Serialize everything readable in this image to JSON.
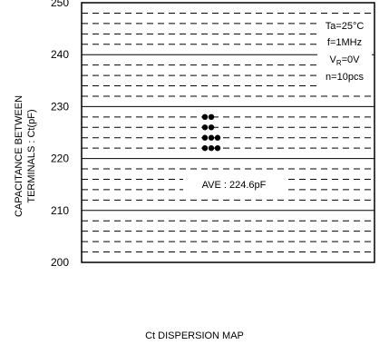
{
  "chart_data": {
    "type": "scatter",
    "title": "Ct DISPERSION MAP",
    "ylabel_line1": "CAPACITANCE BETWEEN",
    "ylabel_line2": "TERMINALS : Ct(pF)",
    "xlabel": "",
    "ylim": [
      200,
      250
    ],
    "y_major_ticks": [
      200,
      210,
      220,
      230,
      240,
      250
    ],
    "y_minor_step": 2,
    "grid": true,
    "conditions": [
      "Ta=25°C",
      "f=1MHz",
      "VR=0V",
      "n=10pcs"
    ],
    "condition_vr": {
      "main": "V",
      "sub": "R",
      "rest": "=0V"
    },
    "annotation": "AVE : 224.6pF",
    "points": [
      {
        "column": 1,
        "y": 222
      },
      {
        "column": 1,
        "y": 224
      },
      {
        "column": 1,
        "y": 226
      },
      {
        "column": 1,
        "y": 228
      },
      {
        "column": 2,
        "y": 222
      },
      {
        "column": 2,
        "y": 224
      },
      {
        "column": 2,
        "y": 226
      },
      {
        "column": 2,
        "y": 228
      },
      {
        "column": 3,
        "y": 222
      },
      {
        "column": 3,
        "y": 224
      }
    ]
  }
}
